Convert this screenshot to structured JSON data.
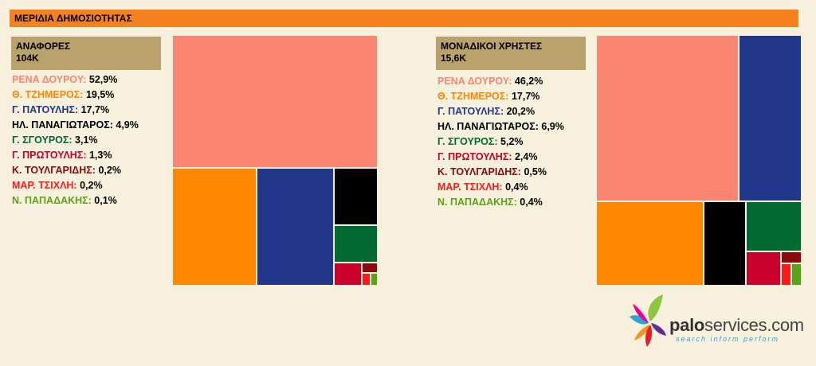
{
  "header": {
    "title": "ΜΕΡΙΔΙΑ ΔΗΜΟΣΙΟΤΗΤΑΣ"
  },
  "logo": {
    "name_main": "palo",
    "name_rest": "services.com",
    "tagline": "search inform perform"
  },
  "colors": {
    "header_bg": "#f5821f",
    "metric_box_bg": "#b9a26b",
    "page_bg": "#f7f0dc"
  },
  "chart_data": [
    {
      "type": "treemap",
      "title": "ΑΝΑΦΟΡΕΣ",
      "subtitle": "104K",
      "entries": [
        {
          "name": "ΡΕΝΑ ΔΟΥΡΟΥ:",
          "value": 52.9,
          "label": "52,9%",
          "color": "#fa8572"
        },
        {
          "name": "Θ. ΤΖΗΜΕΡΟΣ:",
          "value": 19.5,
          "label": "19,5%",
          "color": "#ff8600"
        },
        {
          "name": "Γ. ΠΑΤΟΥΛΗΣ:",
          "value": 17.7,
          "label": "17,7%",
          "color": "#21388a"
        },
        {
          "name": "ΗΛ. ΠΑΝΑΓΙΩΤΑΡΟΣ:",
          "value": 4.9,
          "label": "4,9%",
          "color": "#000000"
        },
        {
          "name": "Γ. ΣΓΟΥΡΟΣ:",
          "value": 3.1,
          "label": "3,1%",
          "color": "#006a32"
        },
        {
          "name": "Γ. ΠΡΩΤΟΥΛΗΣ:",
          "value": 1.3,
          "label": "1,3%",
          "color": "#c8002a"
        },
        {
          "name": "Κ. ΤΟΥΛΓΑΡΙΔΗΣ:",
          "value": 0.2,
          "label": "0,2%",
          "color": "#8b0a0a"
        },
        {
          "name": "ΜΑΡ. ΤΣΙΧΛΗ:",
          "value": 0.2,
          "label": "0,2%",
          "color": "#ff1a1a"
        },
        {
          "name": "Ν. ΠΑΠΑΔΑΚΗΣ:",
          "value": 0.1,
          "label": "0,1%",
          "color": "#5aa319"
        }
      ]
    },
    {
      "type": "treemap",
      "title": "ΜΟΝΑΔΙΚΟΙ ΧΡΗΣΤΕΣ",
      "subtitle": "15,6K",
      "entries": [
        {
          "name": "ΡΕΝΑ ΔΟΥΡΟΥ:",
          "value": 46.2,
          "label": "46,2%",
          "color": "#fa8572"
        },
        {
          "name": "Θ. ΤΖΗΜΕΡΟΣ:",
          "value": 17.7,
          "label": "17,7%",
          "color": "#ff8600"
        },
        {
          "name": "Γ. ΠΑΤΟΥΛΗΣ:",
          "value": 20.2,
          "label": "20,2%",
          "color": "#21388a"
        },
        {
          "name": "ΗΛ. ΠΑΝΑΓΙΩΤΑΡΟΣ:",
          "value": 6.9,
          "label": "6,9%",
          "color": "#000000"
        },
        {
          "name": "Γ. ΣΓΟΥΡΟΣ:",
          "value": 5.2,
          "label": "5,2%",
          "color": "#006a32"
        },
        {
          "name": "Γ. ΠΡΩΤΟΥΛΗΣ:",
          "value": 2.4,
          "label": "2,4%",
          "color": "#c8002a"
        },
        {
          "name": "Κ. ΤΟΥΛΓΑΡΙΔΗΣ:",
          "value": 0.5,
          "label": "0,5%",
          "color": "#8b0a0a"
        },
        {
          "name": "ΜΑΡ. ΤΣΙΧΛΗ:",
          "value": 0.4,
          "label": "0,4%",
          "color": "#ff1a1a"
        },
        {
          "name": "Ν. ΠΑΠΑΔΑΚΗΣ:",
          "value": 0.4,
          "label": "0,4%",
          "color": "#5aa319"
        }
      ]
    }
  ]
}
